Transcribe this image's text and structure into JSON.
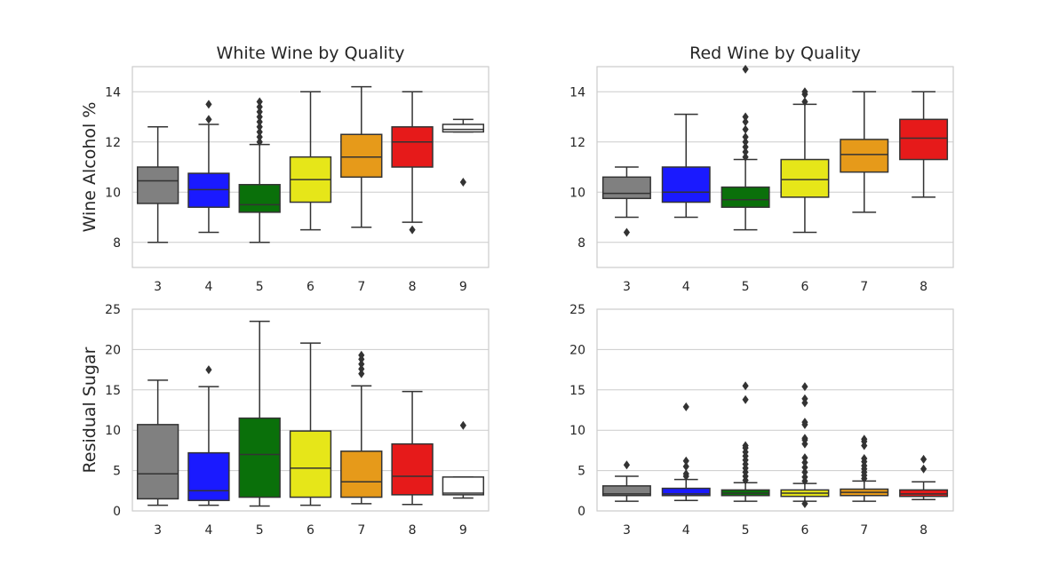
{
  "chart_data": [
    {
      "type": "box",
      "title": "White Wine by Quality",
      "ylabel": "Wine Alcohol %",
      "ylim": [
        7,
        15
      ],
      "yticks": [
        8,
        10,
        12,
        14
      ],
      "grid": true,
      "categories": [
        "3",
        "4",
        "5",
        "6",
        "7",
        "8",
        "9"
      ],
      "colors": [
        "#808080",
        "#1a1aff",
        "#0a700a",
        "#e6e619",
        "#e69a1a",
        "#e61a1a",
        "#ffffff"
      ],
      "boxes": [
        {
          "whislo": 8.0,
          "q1": 9.55,
          "med": 10.45,
          "q3": 11.0,
          "whishi": 12.6,
          "fliers": []
        },
        {
          "whislo": 8.4,
          "q1": 9.4,
          "med": 10.1,
          "q3": 10.75,
          "whishi": 12.7,
          "fliers": [
            12.9,
            13.5
          ]
        },
        {
          "whislo": 8.0,
          "q1": 9.2,
          "med": 9.5,
          "q3": 10.3,
          "whishi": 11.9,
          "fliers": [
            12.0,
            12.2,
            12.4,
            12.6,
            12.8,
            13.0,
            13.2,
            13.4,
            13.6
          ]
        },
        {
          "whislo": 8.5,
          "q1": 9.6,
          "med": 10.5,
          "q3": 11.4,
          "whishi": 14.0,
          "fliers": []
        },
        {
          "whislo": 8.6,
          "q1": 10.6,
          "med": 11.4,
          "q3": 12.3,
          "whishi": 14.2,
          "fliers": []
        },
        {
          "whislo": 8.8,
          "q1": 11.0,
          "med": 12.0,
          "q3": 12.6,
          "whishi": 14.0,
          "fliers": [
            8.5
          ]
        },
        {
          "whislo": 12.4,
          "q1": 12.4,
          "med": 12.5,
          "q3": 12.7,
          "whishi": 12.9,
          "fliers": [
            10.4
          ]
        }
      ]
    },
    {
      "type": "box",
      "title": "Red Wine by Quality",
      "ylabel": "",
      "ylim": [
        7,
        15
      ],
      "yticks": [
        8,
        10,
        12,
        14
      ],
      "grid": true,
      "categories": [
        "3",
        "4",
        "5",
        "6",
        "7",
        "8"
      ],
      "colors": [
        "#808080",
        "#1a1aff",
        "#0a700a",
        "#e6e619",
        "#e69a1a",
        "#e61a1a"
      ],
      "boxes": [
        {
          "whislo": 9.0,
          "q1": 9.75,
          "med": 9.95,
          "q3": 10.6,
          "whishi": 11.0,
          "fliers": [
            8.4
          ]
        },
        {
          "whislo": 9.0,
          "q1": 9.6,
          "med": 10.0,
          "q3": 11.0,
          "whishi": 13.1,
          "fliers": []
        },
        {
          "whislo": 8.5,
          "q1": 9.4,
          "med": 9.7,
          "q3": 10.2,
          "whishi": 11.3,
          "fliers": [
            11.4,
            11.6,
            11.8,
            12.0,
            12.2,
            12.5,
            12.8,
            13.0,
            14.9
          ]
        },
        {
          "whislo": 8.4,
          "q1": 9.8,
          "med": 10.5,
          "q3": 11.3,
          "whishi": 13.5,
          "fliers": [
            13.6,
            13.9,
            14.0
          ]
        },
        {
          "whislo": 9.2,
          "q1": 10.8,
          "med": 11.5,
          "q3": 12.1,
          "whishi": 14.0,
          "fliers": []
        },
        {
          "whislo": 9.8,
          "q1": 11.3,
          "med": 12.15,
          "q3": 12.9,
          "whishi": 14.0,
          "fliers": []
        }
      ]
    },
    {
      "type": "box",
      "title": "",
      "ylabel": "Residual Sugar",
      "ylim": [
        0,
        25
      ],
      "yticks": [
        0,
        5,
        10,
        15,
        20,
        25
      ],
      "grid": true,
      "categories": [
        "3",
        "4",
        "5",
        "6",
        "7",
        "8",
        "9"
      ],
      "colors": [
        "#808080",
        "#1a1aff",
        "#0a700a",
        "#e6e619",
        "#e69a1a",
        "#e61a1a",
        "#ffffff"
      ],
      "boxes": [
        {
          "whislo": 0.7,
          "q1": 1.5,
          "med": 4.6,
          "q3": 10.7,
          "whishi": 16.2,
          "fliers": []
        },
        {
          "whislo": 0.7,
          "q1": 1.3,
          "med": 2.5,
          "q3": 7.2,
          "whishi": 15.4,
          "fliers": [
            17.5
          ]
        },
        {
          "whislo": 0.6,
          "q1": 1.7,
          "med": 7.0,
          "q3": 11.5,
          "whishi": 23.5,
          "fliers": []
        },
        {
          "whislo": 0.7,
          "q1": 1.7,
          "med": 5.3,
          "q3": 9.9,
          "whishi": 20.8,
          "fliers": []
        },
        {
          "whislo": 0.9,
          "q1": 1.7,
          "med": 3.6,
          "q3": 7.4,
          "whishi": 15.5,
          "fliers": [
            17.0,
            17.6,
            18.2,
            18.8,
            19.3
          ]
        },
        {
          "whislo": 0.8,
          "q1": 2.0,
          "med": 4.3,
          "q3": 8.3,
          "whishi": 14.8,
          "fliers": []
        },
        {
          "whislo": 1.6,
          "q1": 2.0,
          "med": 2.2,
          "q3": 4.2,
          "whishi": 4.2,
          "fliers": [
            10.6
          ]
        }
      ]
    },
    {
      "type": "box",
      "title": "",
      "ylabel": "",
      "ylim": [
        0,
        25
      ],
      "yticks": [
        0,
        5,
        10,
        15,
        20,
        25
      ],
      "grid": true,
      "categories": [
        "3",
        "4",
        "5",
        "6",
        "7",
        "8"
      ],
      "colors": [
        "#808080",
        "#1a1aff",
        "#0a700a",
        "#e6e619",
        "#e69a1a",
        "#e61a1a"
      ],
      "boxes": [
        {
          "whislo": 1.2,
          "q1": 1.9,
          "med": 2.1,
          "q3": 3.1,
          "whishi": 4.3,
          "fliers": [
            5.7
          ]
        },
        {
          "whislo": 1.3,
          "q1": 1.9,
          "med": 2.1,
          "q3": 2.8,
          "whishi": 3.9,
          "fliers": [
            4.3,
            4.6,
            5.5,
            6.2,
            12.9
          ]
        },
        {
          "whislo": 1.2,
          "q1": 1.9,
          "med": 2.2,
          "q3": 2.6,
          "whishi": 3.5,
          "fliers": [
            3.8,
            4.3,
            4.8,
            5.3,
            5.8,
            6.3,
            6.8,
            7.3,
            7.8,
            8.1,
            13.8,
            15.5
          ]
        },
        {
          "whislo": 1.2,
          "q1": 1.8,
          "med": 2.2,
          "q3": 2.6,
          "whishi": 3.4,
          "fliers": [
            0.9,
            3.7,
            4.2,
            4.8,
            5.4,
            6.0,
            6.6,
            8.3,
            8.8,
            9.0,
            10.7,
            11.0,
            13.4,
            13.9,
            15.4
          ]
        },
        {
          "whislo": 1.2,
          "q1": 1.9,
          "med": 2.3,
          "q3": 2.7,
          "whishi": 3.7,
          "fliers": [
            4.0,
            4.4,
            4.8,
            5.2,
            5.6,
            6.1,
            6.5,
            8.1,
            8.6,
            8.9
          ]
        },
        {
          "whislo": 1.4,
          "q1": 1.8,
          "med": 2.1,
          "q3": 2.6,
          "whishi": 3.6,
          "fliers": [
            5.2,
            6.4
          ]
        }
      ]
    }
  ]
}
